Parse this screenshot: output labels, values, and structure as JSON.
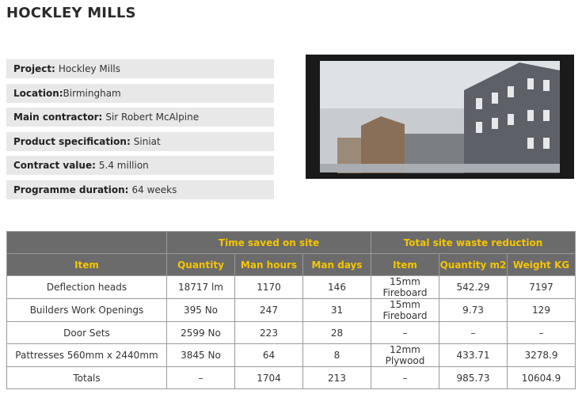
{
  "header": {
    "title": "HOCKLEY MILLS"
  },
  "info": [
    {
      "label": "Project:",
      "value": "Hockley Mills"
    },
    {
      "label": "Location:",
      "value": "Birmingham"
    },
    {
      "label": "Main contractor:",
      "value": "Sir Robert McAlpine"
    },
    {
      "label": "Product specification:",
      "value": "Siniat"
    },
    {
      "label": "Contract value:",
      "value": "5.4 million"
    },
    {
      "label": "Programme duration:",
      "value": "64 weeks"
    }
  ],
  "table": {
    "groups": [
      "Time saved on site",
      "Total site waste reduction"
    ],
    "columns": [
      "Item",
      "Quantity",
      "Man hours",
      "Man days",
      "Item",
      "Quantity m2",
      "Weight KG"
    ],
    "rows": [
      [
        "Deflection heads",
        "18717 lm",
        1170,
        146,
        "15mm Fireboard",
        542.29,
        7197
      ],
      [
        "Builders Work Openings",
        "395 No",
        247,
        31,
        "15mm Fireboard",
        9.73,
        129
      ],
      [
        "Door Sets",
        "2599 No",
        223,
        28,
        "–",
        "–",
        "–"
      ],
      [
        "Pattresses 560mm x 2440mm",
        "3845 No",
        64,
        8,
        "12mm Plywood",
        433.71,
        3278.9
      ],
      [
        "Totals",
        "–",
        1704,
        213,
        "–",
        985.73,
        10604.9
      ]
    ]
  }
}
